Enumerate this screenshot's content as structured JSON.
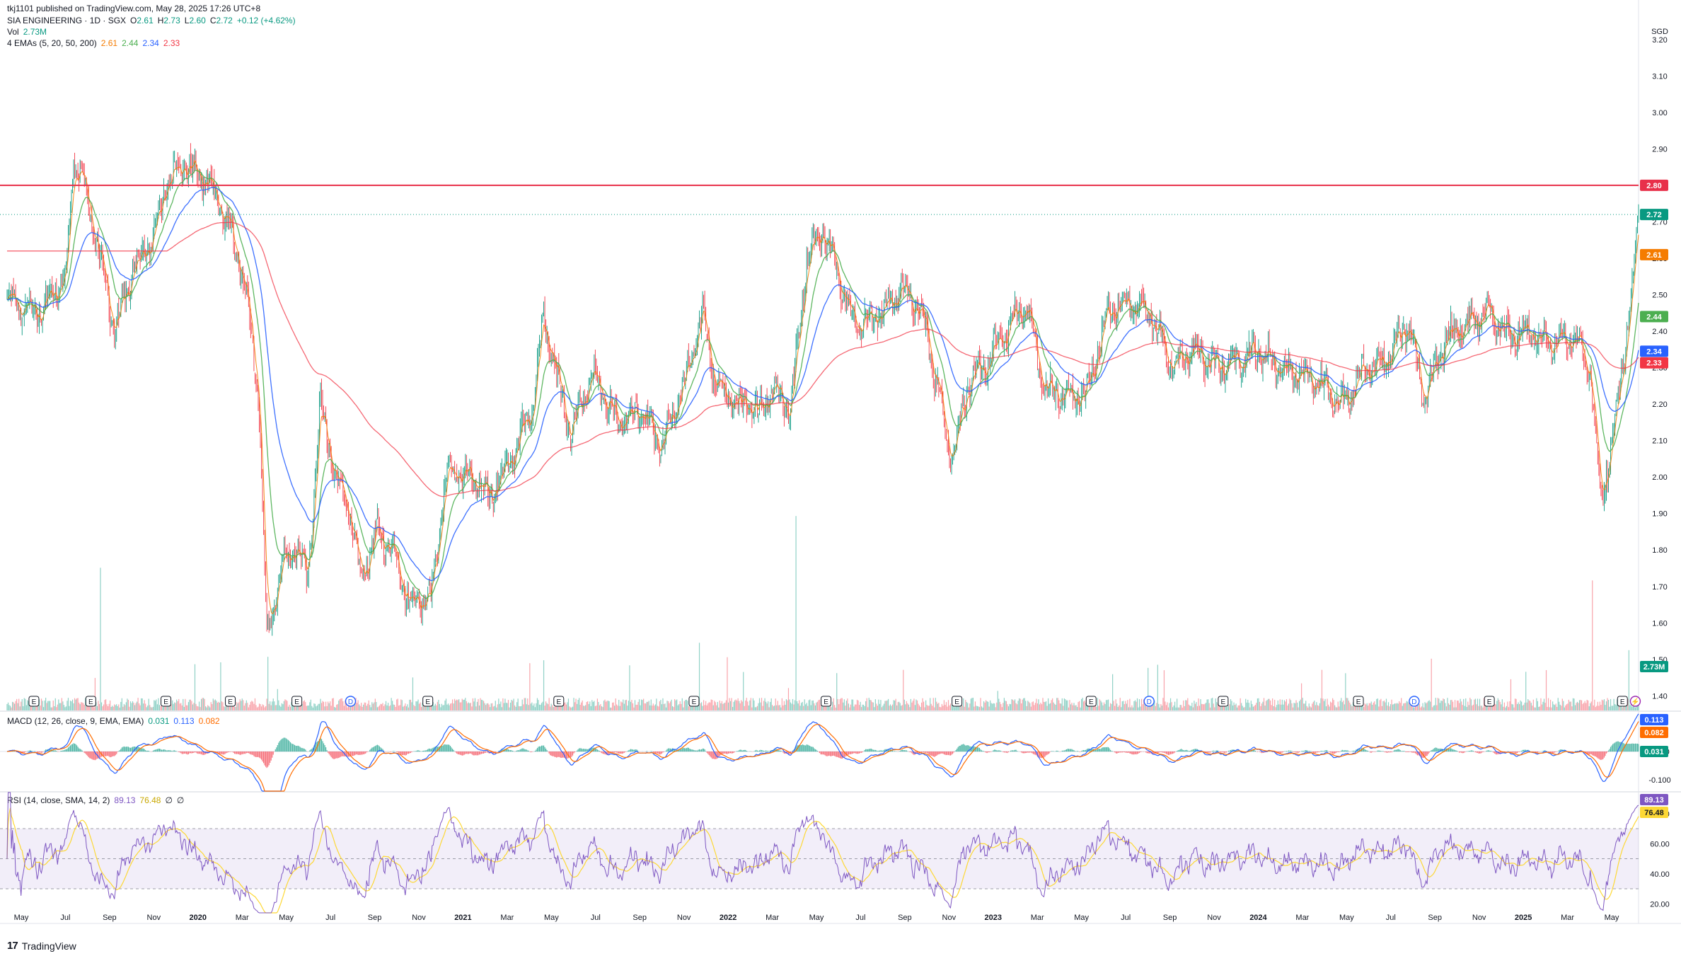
{
  "header": {
    "publisher": "tkj1101 published on TradingView.com, May 28, 2025 17:26 UTC+8",
    "symbol": "SIA ENGINEERING · 1D · SGX",
    "o_label": "O",
    "o": "2.61",
    "h_label": "H",
    "h": "2.73",
    "l_label": "L",
    "l": "2.60",
    "c_label": "C",
    "c": "2.72",
    "change": "+0.12 (+4.62%)",
    "vol_label": "Vol",
    "vol": "2.73M",
    "ema_label": "4 EMAs (5, 20, 50, 200)",
    "ema_values": [
      "2.61",
      "2.44",
      "2.34",
      "2.33"
    ]
  },
  "macd_legend": {
    "label": "MACD (12, 26, close, 9, EMA, EMA)",
    "values": [
      "0.031",
      "0.113",
      "0.082"
    ]
  },
  "rsi_legend": {
    "label": "RSI (14, close, SMA, 14, 2)",
    "values": [
      "89.13",
      "76.48",
      "∅",
      "∅"
    ]
  },
  "footer": {
    "brand": "TradingView",
    "logo": "17"
  },
  "colors": {
    "up": "#089981",
    "down": "#f23645",
    "ema5": "#f57c00",
    "ema20": "#4caf50",
    "ema50": "#2962ff",
    "ema200": "#f23645",
    "macd": "#2962ff",
    "signal": "#ff6d00",
    "rsi": "#7e57c2",
    "rsi_ma": "#fdd835",
    "resistance": "#e8304a"
  },
  "chart_data": [
    {
      "type": "candlestick",
      "currency": "SGD",
      "y_ticks": [
        "3.20",
        "3.10",
        "3.00",
        "2.90",
        "2.80",
        "2.70",
        "2.60",
        "2.50",
        "2.40",
        "2.30",
        "2.20",
        "2.10",
        "2.00",
        "1.90",
        "1.80",
        "1.70",
        "1.60",
        "1.50",
        "1.40"
      ],
      "ylim": [
        1.36,
        3.25
      ],
      "x_ticks": [
        "May",
        "Jul",
        "Sep",
        "Nov",
        "2020",
        "Mar",
        "May",
        "Jul",
        "Sep",
        "Nov",
        "2021",
        "Mar",
        "May",
        "Jul",
        "Sep",
        "Nov",
        "2022",
        "Mar",
        "May",
        "Jul",
        "Sep",
        "Nov",
        "2023",
        "Mar",
        "May",
        "Jul",
        "Sep",
        "Nov",
        "2024",
        "Mar",
        "May",
        "Jul",
        "Sep",
        "Nov",
        "2025",
        "Mar",
        "May"
      ],
      "close_path": [
        [
          0,
          2.48
        ],
        [
          30,
          2.45
        ],
        [
          55,
          2.55
        ],
        [
          62,
          2.88
        ],
        [
          70,
          2.82
        ],
        [
          85,
          2.62
        ],
        [
          100,
          2.4
        ],
        [
          115,
          2.55
        ],
        [
          135,
          2.65
        ],
        [
          150,
          2.82
        ],
        [
          165,
          2.86
        ],
        [
          190,
          2.8
        ],
        [
          205,
          2.7
        ],
        [
          220,
          2.55
        ],
        [
          235,
          2.2
        ],
        [
          242,
          1.55
        ],
        [
          255,
          1.75
        ],
        [
          270,
          1.82
        ],
        [
          280,
          1.72
        ],
        [
          292,
          2.2
        ],
        [
          305,
          2.0
        ],
        [
          315,
          1.95
        ],
        [
          330,
          1.72
        ],
        [
          345,
          1.85
        ],
        [
          360,
          1.8
        ],
        [
          375,
          1.65
        ],
        [
          395,
          1.68
        ],
        [
          410,
          2.02
        ],
        [
          430,
          2.0
        ],
        [
          450,
          1.95
        ],
        [
          470,
          2.05
        ],
        [
          490,
          2.2
        ],
        [
          500,
          2.45
        ],
        [
          510,
          2.3
        ],
        [
          525,
          2.12
        ],
        [
          545,
          2.28
        ],
        [
          570,
          2.15
        ],
        [
          590,
          2.18
        ],
        [
          610,
          2.08
        ],
        [
          630,
          2.25
        ],
        [
          648,
          2.45
        ],
        [
          660,
          2.25
        ],
        [
          680,
          2.2
        ],
        [
          700,
          2.18
        ],
        [
          715,
          2.25
        ],
        [
          730,
          2.18
        ],
        [
          745,
          2.6
        ],
        [
          760,
          2.68
        ],
        [
          775,
          2.55
        ],
        [
          790,
          2.42
        ],
        [
          815,
          2.45
        ],
        [
          835,
          2.52
        ],
        [
          855,
          2.42
        ],
        [
          870,
          2.2
        ],
        [
          880,
          2.05
        ],
        [
          895,
          2.25
        ],
        [
          915,
          2.32
        ],
        [
          935,
          2.42
        ],
        [
          950,
          2.48
        ],
        [
          965,
          2.25
        ],
        [
          985,
          2.22
        ],
        [
          1005,
          2.22
        ],
        [
          1025,
          2.45
        ],
        [
          1045,
          2.48
        ],
        [
          1065,
          2.45
        ],
        [
          1085,
          2.3
        ],
        [
          1105,
          2.35
        ],
        [
          1125,
          2.3
        ],
        [
          1145,
          2.32
        ],
        [
          1165,
          2.35
        ],
        [
          1185,
          2.3
        ],
        [
          1205,
          2.28
        ],
        [
          1225,
          2.25
        ],
        [
          1245,
          2.2
        ],
        [
          1265,
          2.3
        ],
        [
          1285,
          2.32
        ],
        [
          1305,
          2.42
        ],
        [
          1320,
          2.22
        ],
        [
          1340,
          2.38
        ],
        [
          1360,
          2.42
        ],
        [
          1380,
          2.45
        ],
        [
          1400,
          2.38
        ],
        [
          1420,
          2.4
        ],
        [
          1440,
          2.36
        ],
        [
          1460,
          2.38
        ],
        [
          1475,
          2.3
        ],
        [
          1485,
          1.92
        ],
        [
          1495,
          2.1
        ],
        [
          1505,
          2.3
        ],
        [
          1515,
          2.55
        ],
        [
          1520,
          2.72
        ]
      ],
      "hline": 2.8,
      "price_labels": [
        "2.80",
        "2.72",
        "2.61",
        "2.44",
        "2.34",
        "2.33",
        "2.73M"
      ],
      "event_markers": [
        [
          25,
          "E"
        ],
        [
          78,
          "E"
        ],
        [
          148,
          "E"
        ],
        [
          208,
          "E"
        ],
        [
          270,
          "E"
        ],
        [
          320,
          "D"
        ],
        [
          392,
          "E"
        ],
        [
          514,
          "E"
        ],
        [
          640,
          "E"
        ],
        [
          763,
          "E"
        ],
        [
          885,
          "E"
        ],
        [
          1010,
          "E"
        ],
        [
          1064,
          "D"
        ],
        [
          1133,
          "E"
        ],
        [
          1259,
          "E"
        ],
        [
          1311,
          "D"
        ],
        [
          1381,
          "E"
        ],
        [
          1505,
          "E"
        ],
        [
          1517,
          "⚡"
        ]
      ]
    },
    {
      "type": "line",
      "name": "MACD",
      "y_ticks": [
        "0.000",
        "-0.100"
      ],
      "ylim": [
        -0.14,
        0.14
      ],
      "price_labels": [
        "0.113",
        "0.082",
        "0.031"
      ]
    },
    {
      "type": "line",
      "name": "RSI",
      "y_ticks": [
        "80.00",
        "60.00",
        "40.00",
        "20.00"
      ],
      "ylim": [
        14,
        94
      ],
      "levels": [
        70,
        50,
        30
      ],
      "price_labels": [
        "89.13",
        "76.48"
      ]
    }
  ]
}
